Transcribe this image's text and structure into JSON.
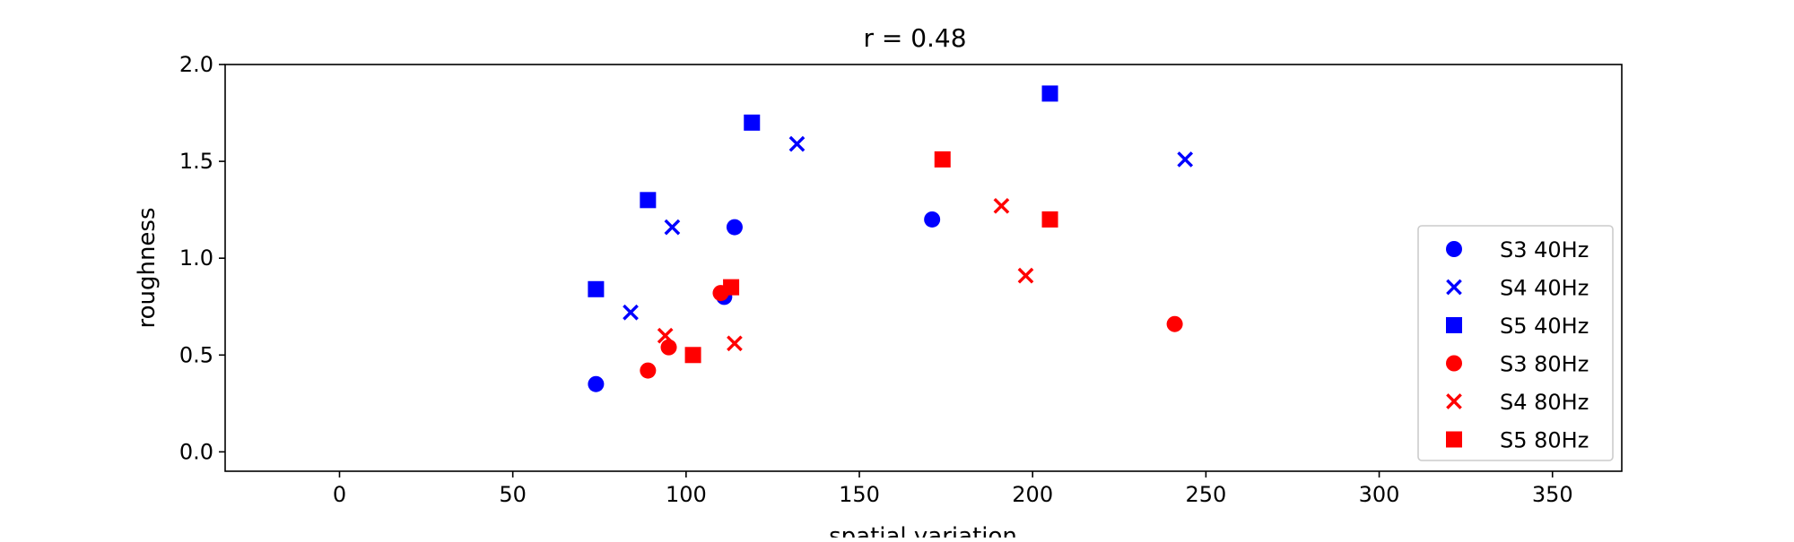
{
  "chart_data": {
    "type": "scatter",
    "title": "r = 0.48",
    "xlabel": "spatial variation",
    "ylabel": "roughness",
    "xlim": [
      -33,
      370
    ],
    "ylim": [
      -0.1,
      2.0
    ],
    "x_ticks": [
      0,
      50,
      100,
      150,
      200,
      250,
      300,
      350
    ],
    "y_ticks": [
      0.0,
      0.5,
      1.0,
      1.5,
      2.0
    ],
    "x_tick_labels": [
      "0",
      "50",
      "100",
      "150",
      "200",
      "250",
      "300",
      "350"
    ],
    "y_tick_labels": [
      "0.0",
      "0.5",
      "1.0",
      "1.5",
      "2.0"
    ],
    "grid": false,
    "legend_position": "right",
    "series": [
      {
        "name": "S3 40Hz",
        "marker": "circle",
        "color": "#0000ff",
        "points": [
          [
            74,
            0.35
          ],
          [
            111,
            0.8
          ],
          [
            114,
            1.16
          ],
          [
            171,
            1.2
          ]
        ]
      },
      {
        "name": "S4 40Hz",
        "marker": "x",
        "color": "#0000ff",
        "points": [
          [
            84,
            0.72
          ],
          [
            96,
            1.16
          ],
          [
            132,
            1.59
          ],
          [
            244,
            1.51
          ]
        ]
      },
      {
        "name": "S5 40Hz",
        "marker": "square",
        "color": "#0000ff",
        "points": [
          [
            74,
            0.84
          ],
          [
            89,
            1.3
          ],
          [
            119,
            1.7
          ],
          [
            205,
            1.85
          ]
        ]
      },
      {
        "name": "S3 80Hz",
        "marker": "circle",
        "color": "#ff0000",
        "points": [
          [
            89,
            0.42
          ],
          [
            95,
            0.54
          ],
          [
            110,
            0.82
          ],
          [
            241,
            0.66
          ]
        ]
      },
      {
        "name": "S4 80Hz",
        "marker": "x",
        "color": "#ff0000",
        "points": [
          [
            94,
            0.6
          ],
          [
            114,
            0.56
          ],
          [
            191,
            1.27
          ],
          [
            198,
            0.91
          ]
        ]
      },
      {
        "name": "S5 80Hz",
        "marker": "square",
        "color": "#ff0000",
        "points": [
          [
            102,
            0.5
          ],
          [
            113,
            0.85
          ],
          [
            174,
            1.51
          ],
          [
            205,
            1.2
          ]
        ]
      }
    ]
  }
}
